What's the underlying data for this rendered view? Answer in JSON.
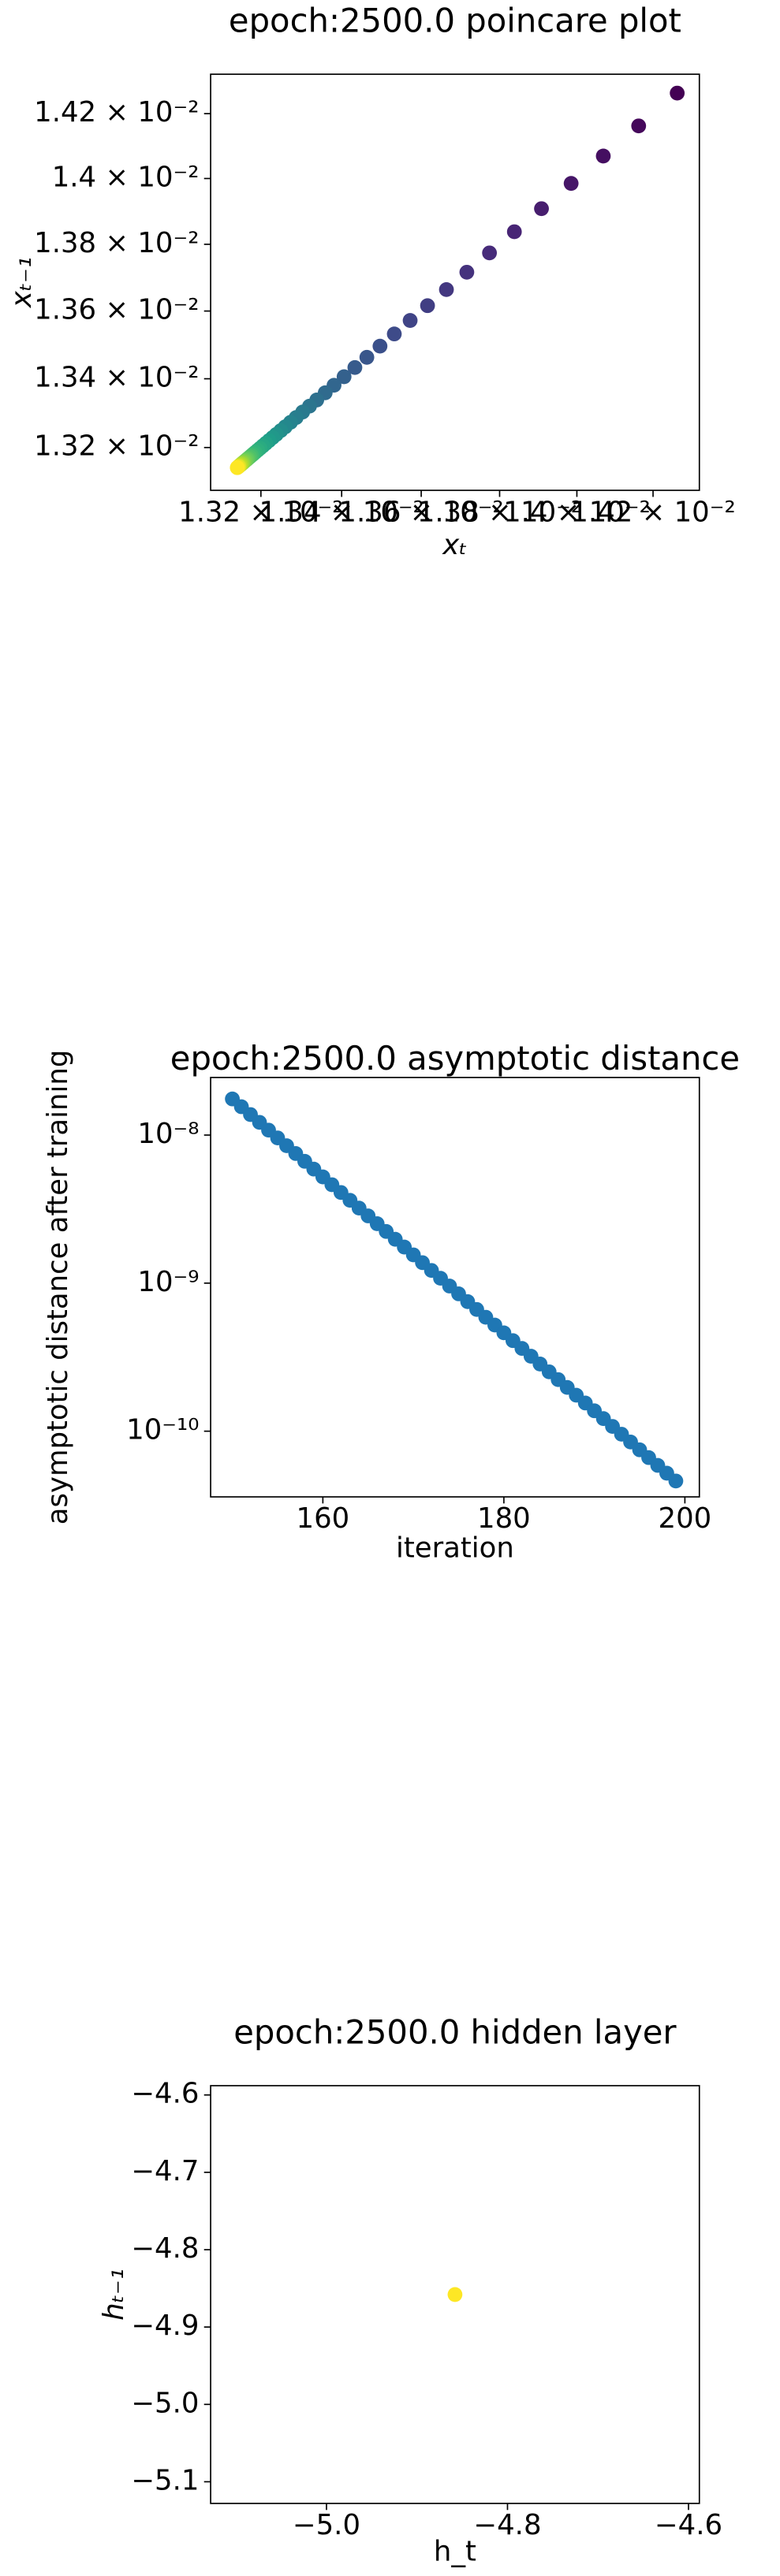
{
  "chart_data": [
    {
      "type": "scatter",
      "title": "epoch:2500.0 poincare plot",
      "x_label": "xₜ",
      "y_label": "xₜ₋₁",
      "xscale": "log",
      "yscale": "log",
      "colormap": "viridis",
      "x": [
        0.014264,
        0.014162,
        0.014069,
        0.013985,
        0.013908,
        0.013838,
        0.013774,
        0.013716,
        0.013664,
        0.013616,
        0.013572,
        0.013532,
        0.013496,
        0.013463,
        0.013433,
        0.013406,
        0.013381,
        0.013359,
        0.013338,
        0.01332,
        0.013303,
        0.013287,
        0.013273,
        0.01326,
        0.013249,
        0.013238,
        0.013229,
        0.01322,
        0.013212,
        0.013205,
        0.013198,
        0.013192,
        0.013186,
        0.013181,
        0.013177,
        0.013173,
        0.013169,
        0.013166,
        0.013163,
        0.01316,
        0.013157,
        0.013155,
        0.013153,
        0.013151,
        0.013149,
        0.013147,
        0.013146,
        0.013145,
        0.013143,
        0.013142
      ],
      "values": [
        0.014264,
        0.014162,
        0.014069,
        0.013985,
        0.013908,
        0.013838,
        0.013774,
        0.013716,
        0.013664,
        0.013616,
        0.013572,
        0.013532,
        0.013496,
        0.013463,
        0.013433,
        0.013406,
        0.013381,
        0.013359,
        0.013338,
        0.01332,
        0.013303,
        0.013287,
        0.013273,
        0.01326,
        0.013249,
        0.013238,
        0.013229,
        0.01322,
        0.013212,
        0.013205,
        0.013198,
        0.013192,
        0.013186,
        0.013181,
        0.013177,
        0.013173,
        0.013169,
        0.013166,
        0.013163,
        0.01316,
        0.013157,
        0.013155,
        0.013153,
        0.013151,
        0.013149,
        0.013147,
        0.013146,
        0.013145,
        0.013143,
        0.013142
      ],
      "xlim": [
        0.013077,
        0.014323
      ],
      "ylim": [
        0.013077,
        0.014323
      ],
      "xticks": [
        {
          "value": 0.0132,
          "label": "1.32 × 10⁻²"
        },
        {
          "value": 0.0134,
          "label": "1.34 × 10⁻²"
        },
        {
          "value": 0.0136,
          "label": "1.36 × 10⁻²"
        },
        {
          "value": 0.0138,
          "label": "1.38 × 10⁻²"
        },
        {
          "value": 0.014,
          "label": "1.4 × 10⁻²"
        },
        {
          "value": 0.0142,
          "label": "1.42 × 10⁻²"
        }
      ],
      "yticks": [
        {
          "value": 0.0132,
          "label": "1.32 × 10⁻²"
        },
        {
          "value": 0.0134,
          "label": "1.34 × 10⁻²"
        },
        {
          "value": 0.0136,
          "label": "1.36 × 10⁻²"
        },
        {
          "value": 0.0138,
          "label": "1.38 × 10⁻²"
        },
        {
          "value": 0.014,
          "label": "1.4 × 10⁻²"
        },
        {
          "value": 0.0142,
          "label": "1.42 × 10⁻²"
        }
      ]
    },
    {
      "type": "scatter",
      "title": "epoch:2500.0 asymptotic distance",
      "x_label": "iteration",
      "y_label": "asymptotic distance after training",
      "yscale": "log",
      "color": "#1f77b4",
      "x": [
        150,
        151,
        152,
        153,
        154,
        155,
        156,
        157,
        158,
        159,
        160,
        161,
        162,
        163,
        164,
        165,
        166,
        167,
        168,
        169,
        170,
        171,
        172,
        173,
        174,
        175,
        176,
        177,
        178,
        179,
        180,
        181,
        182,
        183,
        184,
        185,
        186,
        187,
        188,
        189,
        190,
        191,
        192,
        193,
        194,
        195,
        196,
        197,
        198,
        199
      ],
      "values": [
        1.754e-08,
        1.554e-08,
        1.376e-08,
        1.219e-08,
        1.08e-08,
        9.566e-09,
        8.474e-09,
        7.506e-09,
        6.649e-09,
        5.89e-09,
        5.217e-09,
        4.621e-09,
        4.094e-09,
        3.626e-09,
        3.212e-09,
        2.845e-09,
        2.52e-09,
        2.233e-09,
        1.978e-09,
        1.752e-09,
        1.552e-09,
        1.375e-09,
        1.218e-09,
        1.079e-09,
        9.555e-10,
        8.464e-10,
        7.497e-10,
        6.641e-10,
        5.883e-10,
        5.211e-10,
        4.616e-10,
        4.089e-10,
        3.622e-10,
        3.208e-10,
        2.842e-10,
        2.517e-10,
        2.23e-10,
        1.975e-10,
        1.75e-10,
        1.55e-10,
        1.373e-10,
        1.216e-10,
        1.077e-10,
        9.541e-11,
        8.452e-11,
        7.486e-11,
        6.631e-11,
        5.874e-11,
        5.203e-11,
        4.609e-11
      ],
      "xlim": [
        147.6,
        201.6
      ],
      "ylim": [
        3.6e-11,
        2.449e-08
      ],
      "xticks": [
        160,
        180,
        200
      ],
      "yticks": [
        {
          "value": 1e-10,
          "label": "10⁻¹⁰"
        },
        {
          "value": 1e-09,
          "label": "10⁻⁹"
        },
        {
          "value": 1e-08,
          "label": "10⁻⁸"
        }
      ]
    },
    {
      "type": "scatter",
      "title": "epoch:2500.0 hidden layer",
      "x_label": "h_t",
      "y_label": "hₜ₋₁",
      "colormap": "viridis",
      "x": [
        -4.858
      ],
      "values": [
        -4.858
      ],
      "xlim": [
        -5.128,
        -4.588
      ],
      "ylim": [
        -5.128,
        -4.588
      ],
      "xticks": [
        {
          "value": -5.0,
          "label": "−5.0"
        },
        {
          "value": -4.8,
          "label": "−4.8"
        },
        {
          "value": -4.6,
          "label": "−4.6"
        }
      ],
      "yticks": [
        {
          "value": -5.1,
          "label": "−5.1"
        },
        {
          "value": -5.0,
          "label": "−5.0"
        },
        {
          "value": -4.9,
          "label": "−4.9"
        },
        {
          "value": -4.8,
          "label": "−4.8"
        },
        {
          "value": -4.7,
          "label": "−4.7"
        },
        {
          "value": -4.6,
          "label": "−4.6"
        }
      ]
    }
  ]
}
